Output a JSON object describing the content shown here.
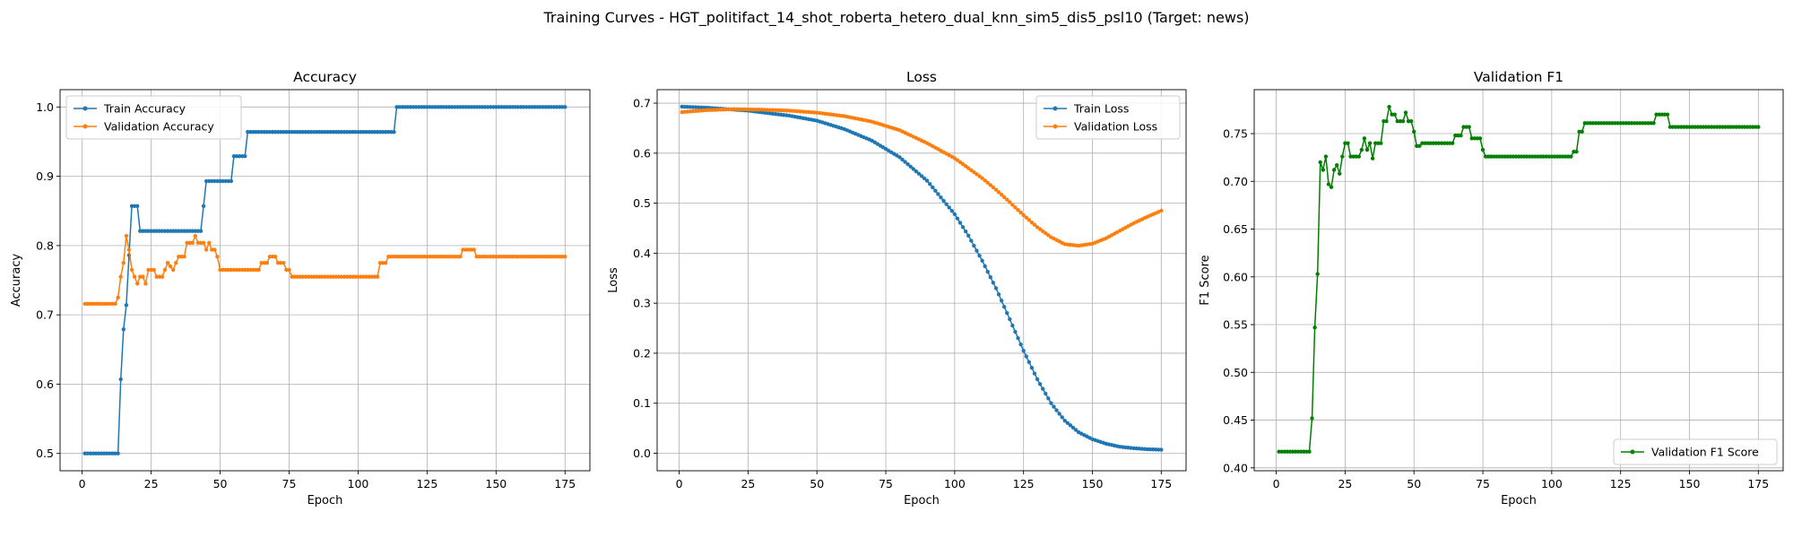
{
  "suptitle": "Training Curves - HGT_politifact_14_shot_roberta_hetero_dual_knn_sim5_dis5_psl10 (Target: news)",
  "colors": {
    "blue": "#1f77b4",
    "orange": "#ff7f0e",
    "green": "#008000",
    "grid": "#b0b0b0"
  },
  "chart_data": [
    {
      "type": "line",
      "title": "Accuracy",
      "xlabel": "Epoch",
      "ylabel": "Accuracy",
      "xlim": [
        -8,
        184
      ],
      "ylim": [
        0.475,
        1.025
      ],
      "xticks": [
        0,
        25,
        50,
        75,
        100,
        125,
        150,
        175
      ],
      "yticks": [
        0.5,
        0.6,
        0.7,
        0.8,
        0.9,
        1.0
      ],
      "ytick_labels": [
        "0.5",
        "0.6",
        "0.7",
        "0.8",
        "0.9",
        "1.0"
      ],
      "grid": true,
      "legend": "upper-left",
      "series": [
        {
          "name": "Train Accuracy",
          "color": "blue",
          "points": [
            [
              1,
              0.5
            ],
            [
              13,
              0.5
            ],
            [
              14,
              0.607
            ],
            [
              15,
              0.679
            ],
            [
              16,
              0.714
            ],
            [
              17,
              0.786
            ],
            [
              18,
              0.857
            ],
            [
              20,
              0.857
            ],
            [
              21,
              0.821
            ],
            [
              42,
              0.821
            ],
            [
              43,
              0.821
            ],
            [
              44,
              0.857
            ],
            [
              45,
              0.893
            ],
            [
              54,
              0.893
            ],
            [
              55,
              0.929
            ],
            [
              59,
              0.929
            ],
            [
              60,
              0.964
            ],
            [
              113,
              0.964
            ],
            [
              114,
              1.0
            ],
            [
              175,
              1.0
            ]
          ]
        },
        {
          "name": "Validation Accuracy",
          "color": "orange",
          "points": [
            [
              1,
              0.716
            ],
            [
              12,
              0.716
            ],
            [
              13,
              0.725
            ],
            [
              14,
              0.755
            ],
            [
              15,
              0.775
            ],
            [
              16,
              0.814
            ],
            [
              17,
              0.794
            ],
            [
              18,
              0.765
            ],
            [
              19,
              0.755
            ],
            [
              20,
              0.745
            ],
            [
              21,
              0.755
            ],
            [
              22,
              0.755
            ],
            [
              23,
              0.745
            ],
            [
              24,
              0.765
            ],
            [
              26,
              0.765
            ],
            [
              27,
              0.755
            ],
            [
              29,
              0.755
            ],
            [
              30,
              0.765
            ],
            [
              31,
              0.775
            ],
            [
              33,
              0.765
            ],
            [
              34,
              0.775
            ],
            [
              35,
              0.784
            ],
            [
              37,
              0.784
            ],
            [
              38,
              0.804
            ],
            [
              40,
              0.804
            ],
            [
              41,
              0.814
            ],
            [
              42,
              0.804
            ],
            [
              44,
              0.804
            ],
            [
              45,
              0.794
            ],
            [
              46,
              0.804
            ],
            [
              47,
              0.794
            ],
            [
              48,
              0.794
            ],
            [
              49,
              0.784
            ],
            [
              50,
              0.765
            ],
            [
              64,
              0.765
            ],
            [
              65,
              0.775
            ],
            [
              67,
              0.775
            ],
            [
              68,
              0.784
            ],
            [
              70,
              0.784
            ],
            [
              71,
              0.775
            ],
            [
              73,
              0.775
            ],
            [
              74,
              0.765
            ],
            [
              75,
              0.765
            ],
            [
              76,
              0.755
            ],
            [
              107,
              0.755
            ],
            [
              108,
              0.775
            ],
            [
              110,
              0.775
            ],
            [
              111,
              0.784
            ],
            [
              137,
              0.784
            ],
            [
              138,
              0.794
            ],
            [
              142,
              0.794
            ],
            [
              143,
              0.784
            ],
            [
              175,
              0.784
            ]
          ]
        }
      ]
    },
    {
      "type": "line",
      "title": "Loss",
      "xlabel": "Epoch",
      "ylabel": "Loss",
      "xlim": [
        -8,
        184
      ],
      "ylim": [
        -0.035,
        0.727
      ],
      "xticks": [
        0,
        25,
        50,
        75,
        100,
        125,
        150,
        175
      ],
      "yticks": [
        0.0,
        0.1,
        0.2,
        0.3,
        0.4,
        0.5,
        0.6,
        0.7
      ],
      "ytick_labels": [
        "0.0",
        "0.1",
        "0.2",
        "0.3",
        "0.4",
        "0.5",
        "0.6",
        "0.7"
      ],
      "grid": true,
      "legend": "upper-right",
      "series": [
        {
          "name": "Train Loss",
          "color": "blue",
          "points": [
            [
              1,
              0.693
            ],
            [
              10,
              0.691
            ],
            [
              25,
              0.685
            ],
            [
              40,
              0.675
            ],
            [
              50,
              0.665
            ],
            [
              60,
              0.648
            ],
            [
              70,
              0.625
            ],
            [
              80,
              0.592
            ],
            [
              90,
              0.545
            ],
            [
              100,
              0.478
            ],
            [
              105,
              0.435
            ],
            [
              110,
              0.385
            ],
            [
              115,
              0.33
            ],
            [
              120,
              0.268
            ],
            [
              125,
              0.205
            ],
            [
              130,
              0.148
            ],
            [
              135,
              0.1
            ],
            [
              140,
              0.065
            ],
            [
              145,
              0.042
            ],
            [
              150,
              0.028
            ],
            [
              155,
              0.019
            ],
            [
              160,
              0.013
            ],
            [
              165,
              0.01
            ],
            [
              170,
              0.008
            ],
            [
              175,
              0.007
            ]
          ]
        },
        {
          "name": "Validation Loss",
          "color": "orange",
          "points": [
            [
              1,
              0.682
            ],
            [
              10,
              0.686
            ],
            [
              20,
              0.688
            ],
            [
              30,
              0.687
            ],
            [
              40,
              0.685
            ],
            [
              50,
              0.681
            ],
            [
              60,
              0.674
            ],
            [
              70,
              0.663
            ],
            [
              80,
              0.646
            ],
            [
              90,
              0.62
            ],
            [
              100,
              0.59
            ],
            [
              110,
              0.55
            ],
            [
              115,
              0.527
            ],
            [
              120,
              0.502
            ],
            [
              125,
              0.476
            ],
            [
              130,
              0.452
            ],
            [
              135,
              0.432
            ],
            [
              140,
              0.418
            ],
            [
              145,
              0.415
            ],
            [
              150,
              0.419
            ],
            [
              155,
              0.43
            ],
            [
              160,
              0.445
            ],
            [
              165,
              0.46
            ],
            [
              170,
              0.473
            ],
            [
              175,
              0.485
            ]
          ]
        }
      ]
    },
    {
      "type": "line",
      "title": "Validation F1",
      "xlabel": "Epoch",
      "ylabel": "F1 Score",
      "xlim": [
        -8,
        184
      ],
      "ylim": [
        0.397,
        0.796
      ],
      "xticks": [
        0,
        25,
        50,
        75,
        100,
        125,
        150,
        175
      ],
      "yticks": [
        0.4,
        0.45,
        0.5,
        0.55,
        0.6,
        0.65,
        0.7,
        0.75
      ],
      "ytick_labels": [
        "0.40",
        "0.45",
        "0.50",
        "0.55",
        "0.60",
        "0.65",
        "0.70",
        "0.75"
      ],
      "grid": true,
      "legend": "lower-right",
      "series": [
        {
          "name": "Validation F1 Score",
          "color": "green",
          "points": [
            [
              1,
              0.417
            ],
            [
              12,
              0.417
            ],
            [
              13,
              0.452
            ],
            [
              14,
              0.547
            ],
            [
              15,
              0.603
            ],
            [
              16,
              0.72
            ],
            [
              17,
              0.712
            ],
            [
              18,
              0.726
            ],
            [
              19,
              0.697
            ],
            [
              20,
              0.694
            ],
            [
              21,
              0.712
            ],
            [
              22,
              0.717
            ],
            [
              23,
              0.708
            ],
            [
              24,
              0.726
            ],
            [
              25,
              0.74
            ],
            [
              26,
              0.74
            ],
            [
              27,
              0.726
            ],
            [
              30,
              0.726
            ],
            [
              31,
              0.733
            ],
            [
              32,
              0.745
            ],
            [
              33,
              0.733
            ],
            [
              34,
              0.74
            ],
            [
              35,
              0.724
            ],
            [
              36,
              0.74
            ],
            [
              38,
              0.74
            ],
            [
              39,
              0.763
            ],
            [
              40,
              0.763
            ],
            [
              41,
              0.778
            ],
            [
              42,
              0.77
            ],
            [
              43,
              0.77
            ],
            [
              44,
              0.763
            ],
            [
              46,
              0.763
            ],
            [
              47,
              0.772
            ],
            [
              48,
              0.763
            ],
            [
              49,
              0.763
            ],
            [
              50,
              0.752
            ],
            [
              51,
              0.737
            ],
            [
              52,
              0.737
            ],
            [
              53,
              0.74
            ],
            [
              64,
              0.74
            ],
            [
              65,
              0.748
            ],
            [
              67,
              0.748
            ],
            [
              68,
              0.757
            ],
            [
              70,
              0.757
            ],
            [
              71,
              0.745
            ],
            [
              74,
              0.745
            ],
            [
              75,
              0.733
            ],
            [
              76,
              0.726
            ],
            [
              107,
              0.726
            ],
            [
              108,
              0.731
            ],
            [
              109,
              0.731
            ],
            [
              110,
              0.752
            ],
            [
              111,
              0.752
            ],
            [
              112,
              0.761
            ],
            [
              137,
              0.761
            ],
            [
              138,
              0.77
            ],
            [
              142,
              0.77
            ],
            [
              143,
              0.757
            ],
            [
              175,
              0.757
            ]
          ]
        }
      ]
    }
  ]
}
